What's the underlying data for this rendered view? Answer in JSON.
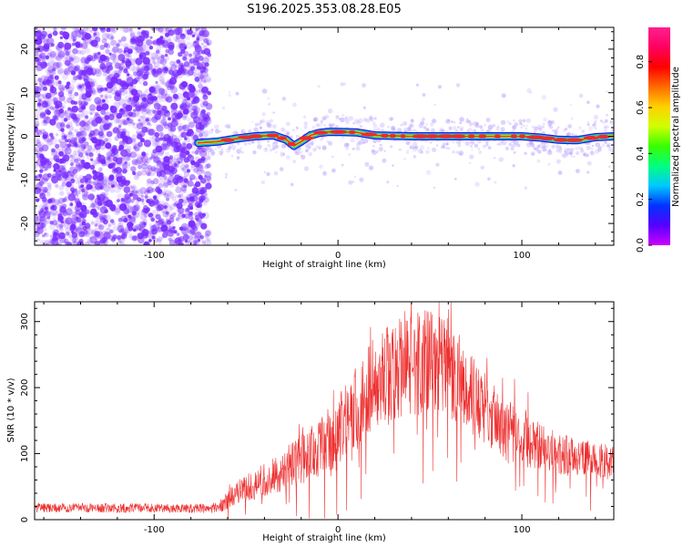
{
  "figure_title": "S196.2025.353.08.28.E05",
  "colors": {
    "snr_line": "#ee3030",
    "scatter": "#7a2cff",
    "ridge": [
      "#2a18d8",
      "#21b8ff",
      "#18e048",
      "#f0e81a",
      "#ee2a2a"
    ],
    "colorbar": [
      "#cc00ff",
      "#5500ff",
      "#0033ff",
      "#00c8ff",
      "#00ff80",
      "#38ff00",
      "#d0ff00",
      "#ffd000",
      "#ff6a00",
      "#ff0000",
      "#ff0060",
      "#ff2090"
    ]
  },
  "chart_data": [
    {
      "type": "heatmap",
      "name": "spectrogram",
      "xlabel": "Height of straight line (km)",
      "ylabel": "Frequency (Hz)",
      "xlim": [
        -165,
        150
      ],
      "ylim": [
        -25,
        25
      ],
      "xticks": [
        -100,
        0,
        100
      ],
      "yticks": [
        -20,
        -10,
        0,
        10,
        20
      ],
      "noise_region_x": [
        -165,
        -70
      ],
      "ridge_profile": {
        "x": [
          -75,
          -65,
          -55,
          -45,
          -35,
          -28,
          -24,
          -20,
          -15,
          -10,
          -5,
          0,
          10,
          20,
          40,
          60,
          80,
          100,
          110,
          120,
          130,
          140,
          150
        ],
        "freq": [
          -1.5,
          -1.2,
          -0.5,
          0,
          0.2,
          -0.8,
          -2.2,
          -1.2,
          0.2,
          0.8,
          1,
          1,
          0.9,
          0.2,
          0,
          0,
          0,
          0,
          -0.3,
          -0.8,
          -0.9,
          -0.2,
          0
        ]
      },
      "colorbar": {
        "label": "Normalized spectral amplitude",
        "range": [
          0,
          0.95
        ],
        "ticks": [
          "0.0",
          "0.2",
          "0.4",
          "0.6",
          "0.8"
        ],
        "tick_values": [
          0,
          0.2,
          0.4,
          0.6,
          0.8
        ]
      }
    },
    {
      "type": "line",
      "name": "snr",
      "xlabel": "Height of straight line (km)",
      "ylabel": "SNR (10 * v/v)",
      "xlim": [
        -165,
        150
      ],
      "ylim": [
        0,
        330
      ],
      "xticks": [
        -100,
        0,
        100
      ],
      "yticks": [
        0,
        100,
        200,
        300
      ],
      "envelope": {
        "x": [
          -165,
          -70,
          -65,
          -60,
          -55,
          -50,
          -40,
          -30,
          -20,
          -10,
          0,
          10,
          20,
          30,
          40,
          50,
          60,
          70,
          80,
          90,
          100,
          110,
          120,
          130,
          140,
          150
        ],
        "mean": [
          18,
          17,
          18,
          30,
          40,
          50,
          60,
          75,
          90,
          110,
          130,
          170,
          210,
          225,
          235,
          240,
          230,
          200,
          170,
          140,
          120,
          110,
          100,
          95,
          90,
          85
        ],
        "spread": [
          7,
          7,
          9,
          14,
          18,
          22,
          26,
          32,
          38,
          45,
          55,
          65,
          70,
          80,
          80,
          80,
          75,
          65,
          55,
          45,
          40,
          35,
          32,
          30,
          28,
          26
        ]
      }
    }
  ]
}
